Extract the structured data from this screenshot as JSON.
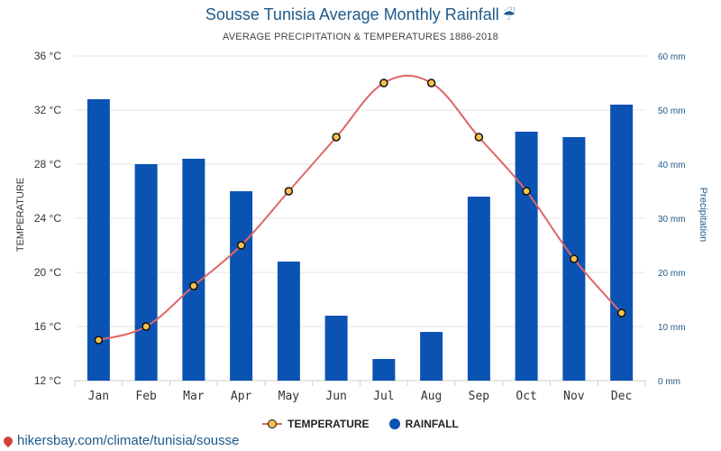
{
  "title": "Sousse Tunisia Average Monthly Rainfall",
  "title_icon": "umbrella-rain-icon",
  "subtitle": "AVERAGE PRECIPITATION & TEMPERATURES 1886-2018",
  "footer": {
    "url": "hikersbay.com/climate/tunisia/sousse",
    "icon": "map-pin-icon"
  },
  "colors": {
    "temperature_line": "#e06666",
    "temperature_marker": "#f6c14b",
    "rainfall_bar": "#0b53b3",
    "title": "#1f5a8a"
  },
  "chart_data": {
    "type": "bar",
    "title": "Sousse Tunisia Average Monthly Rainfall",
    "subtitle": "AVERAGE PRECIPITATION & TEMPERATURES 1886-2018",
    "categories": [
      "Jan",
      "Feb",
      "Mar",
      "Apr",
      "May",
      "Jun",
      "Jul",
      "Aug",
      "Sep",
      "Oct",
      "Nov",
      "Dec"
    ],
    "left_axis": {
      "label": "TEMPERATURE",
      "ylim": [
        12,
        36
      ],
      "ticks": [
        12,
        16,
        20,
        24,
        28,
        32,
        36
      ],
      "tick_labels": [
        "12 °C",
        "16 °C",
        "20 °C",
        "24 °C",
        "28 °C",
        "32 °C",
        "36 °C"
      ]
    },
    "right_axis": {
      "label": "Precipitation",
      "ylim": [
        0,
        60
      ],
      "ticks": [
        0,
        10,
        20,
        30,
        40,
        50,
        60
      ],
      "tick_labels": [
        "0 mm",
        "10 mm",
        "20 mm",
        "30 mm",
        "40 mm",
        "50 mm",
        "60 mm"
      ]
    },
    "series": [
      {
        "name": "TEMPERATURE",
        "type": "line",
        "axis": "left",
        "values": [
          15,
          16,
          19,
          22,
          26,
          30,
          34,
          34,
          30,
          26,
          21,
          17
        ]
      },
      {
        "name": "RAINFALL",
        "type": "bar",
        "axis": "right",
        "values": [
          52,
          40,
          41,
          35,
          22,
          12,
          4,
          9,
          34,
          46,
          45,
          51
        ]
      }
    ],
    "grid": true,
    "legend_position": "bottom-center"
  }
}
